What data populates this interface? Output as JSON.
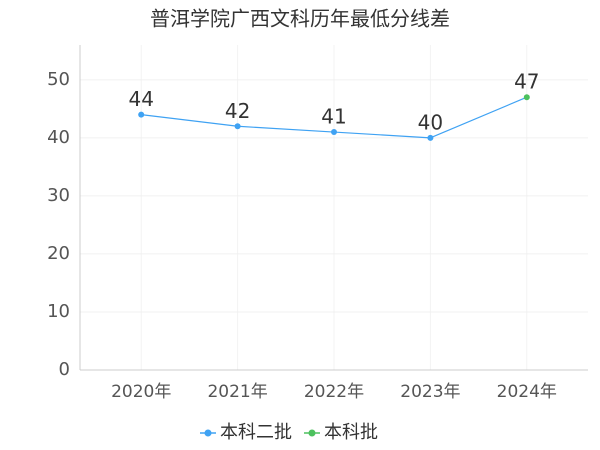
{
  "chart_data": {
    "type": "line",
    "title": "普洱学院广西文科历年最低分线差",
    "categories": [
      "2020年",
      "2021年",
      "2022年",
      "2023年",
      "2024年"
    ],
    "series": [
      {
        "name": "本科二批",
        "color": "#3fa2f3",
        "values": [
          44,
          42,
          41,
          40,
          null
        ]
      },
      {
        "name": "本科批",
        "color": "#4cc15e",
        "values": [
          null,
          null,
          null,
          null,
          47
        ]
      }
    ],
    "ylim": [
      0,
      56
    ],
    "yticks": [
      0,
      10,
      20,
      30,
      40,
      50
    ],
    "grid": true
  }
}
